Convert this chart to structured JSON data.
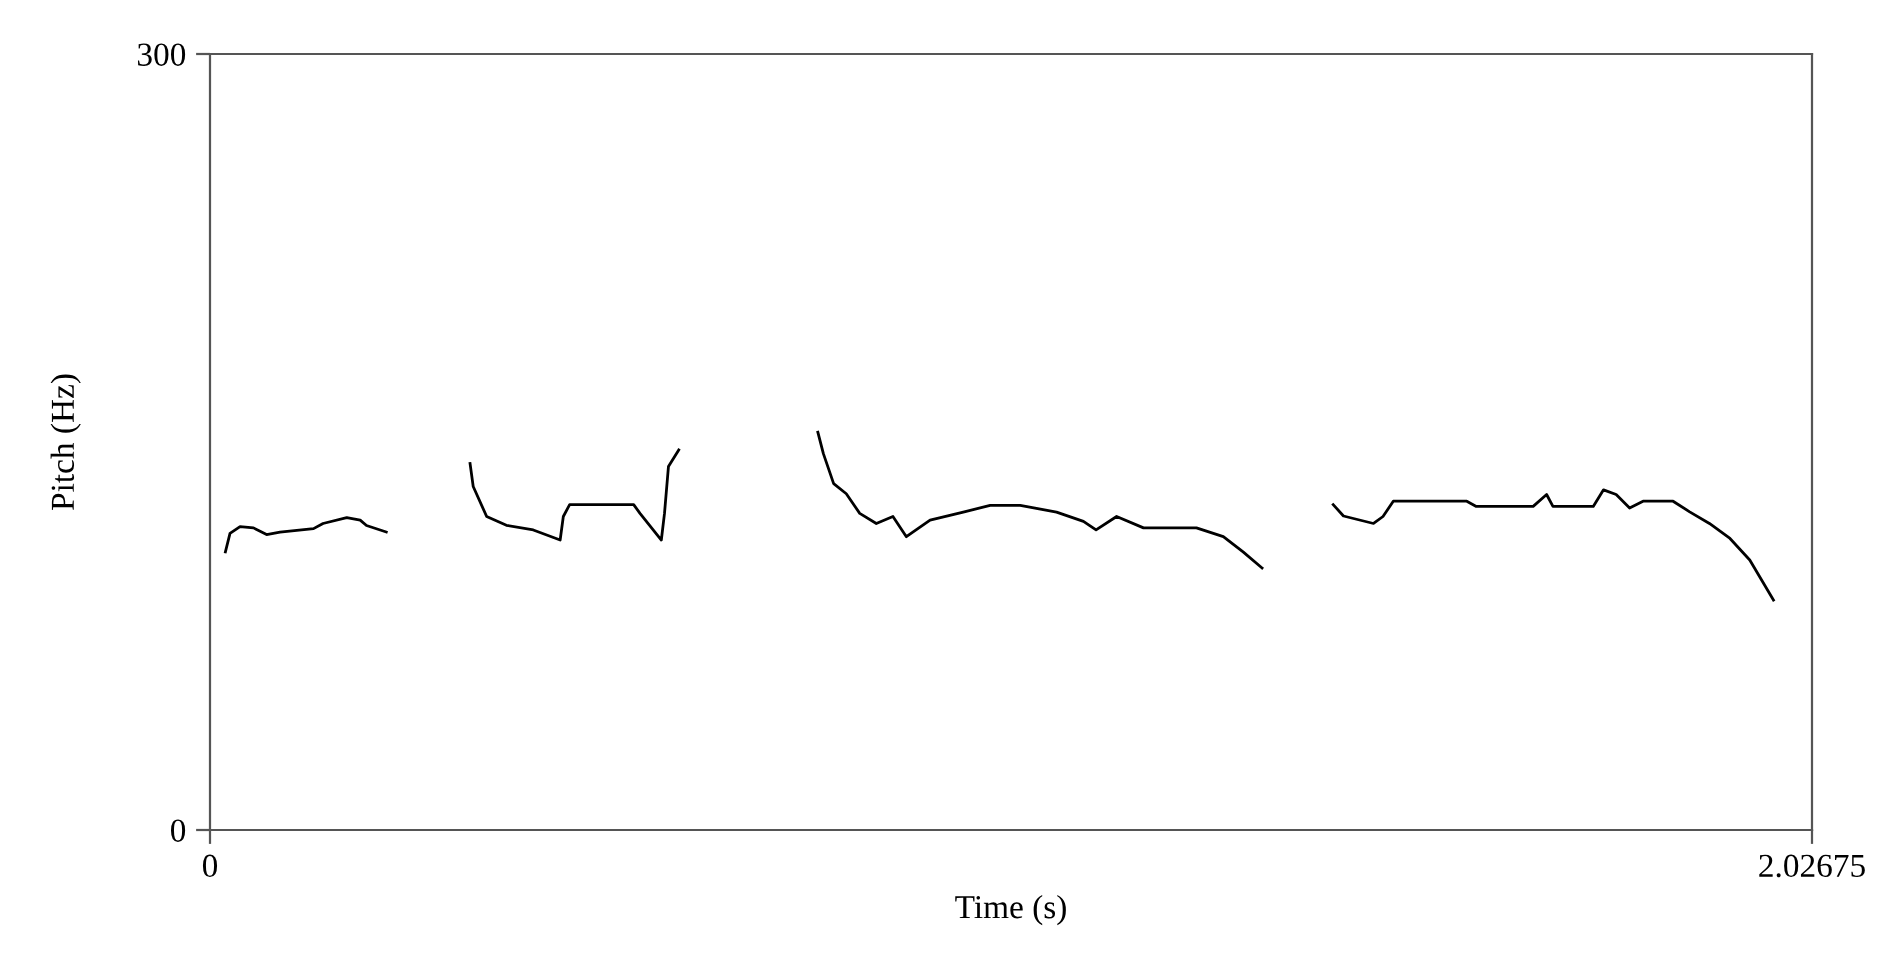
{
  "chart_data": {
    "type": "line",
    "xlabel": "Time (s)",
    "ylabel": "Pitch (Hz)",
    "xlim": [
      0,
      2.02675
    ],
    "ylim": [
      0,
      300
    ],
    "xticks": [
      0,
      2.02675
    ],
    "yticks": [
      0,
      300
    ],
    "grid": false,
    "legend": false,
    "marker": "none",
    "line_style": "solid",
    "series": [
      {
        "color": "#000000",
        "x": [
          0.0195,
          0.0253,
          0.038,
          0.055,
          0.0716,
          0.0886,
          0.131,
          0.143,
          0.173,
          0.19,
          0.198,
          0.223,
          0.27,
          0.329,
          0.333,
          0.35,
          0.375,
          0.409,
          0.443,
          0.447,
          0.455,
          0.536,
          0.544,
          0.571,
          0.575,
          0.58,
          0.593,
          0.68,
          0.769,
          0.776,
          0.789,
          0.805,
          0.822,
          0.843,
          0.864,
          0.881,
          0.911,
          0.953,
          0.987,
          1.025,
          1.071,
          1.105,
          1.121,
          1.147,
          1.181,
          1.248,
          1.282,
          1.307,
          1.331,
          1.38,
          1.421,
          1.434,
          1.472,
          1.484,
          1.497,
          1.59,
          1.602,
          1.674,
          1.691,
          1.699,
          1.75,
          1.763,
          1.779,
          1.796,
          1.813,
          1.851,
          1.872,
          1.897,
          1.923,
          1.948,
          1.978
        ],
        "values": [
          107.5,
          114.7,
          117.3,
          116.8,
          114.2,
          115.2,
          116.5,
          118.5,
          120.8,
          119.8,
          117.7,
          115.2,
          null,
          141.7,
          132.8,
          121.2,
          117.8,
          116.0,
          112.1,
          121.2,
          125.8,
          125.8,
          122.4,
          112.1,
          122.4,
          140.5,
          146.9,
          null,
          153.8,
          145.5,
          133.9,
          130.0,
          122.4,
          118.5,
          121.2,
          113.4,
          119.8,
          122.9,
          125.5,
          125.5,
          122.9,
          119.3,
          116.0,
          121.2,
          116.8,
          116.8,
          113.4,
          107.5,
          101.3,
          null,
          125.8,
          121.4,
          118.5,
          121.2,
          127.1,
          127.1,
          125.1,
          125.1,
          129.7,
          125.1,
          125.1,
          131.5,
          129.7,
          124.5,
          127.1,
          127.1,
          123.0,
          118.5,
          112.7,
          104.4,
          88.9
        ]
      }
    ]
  }
}
